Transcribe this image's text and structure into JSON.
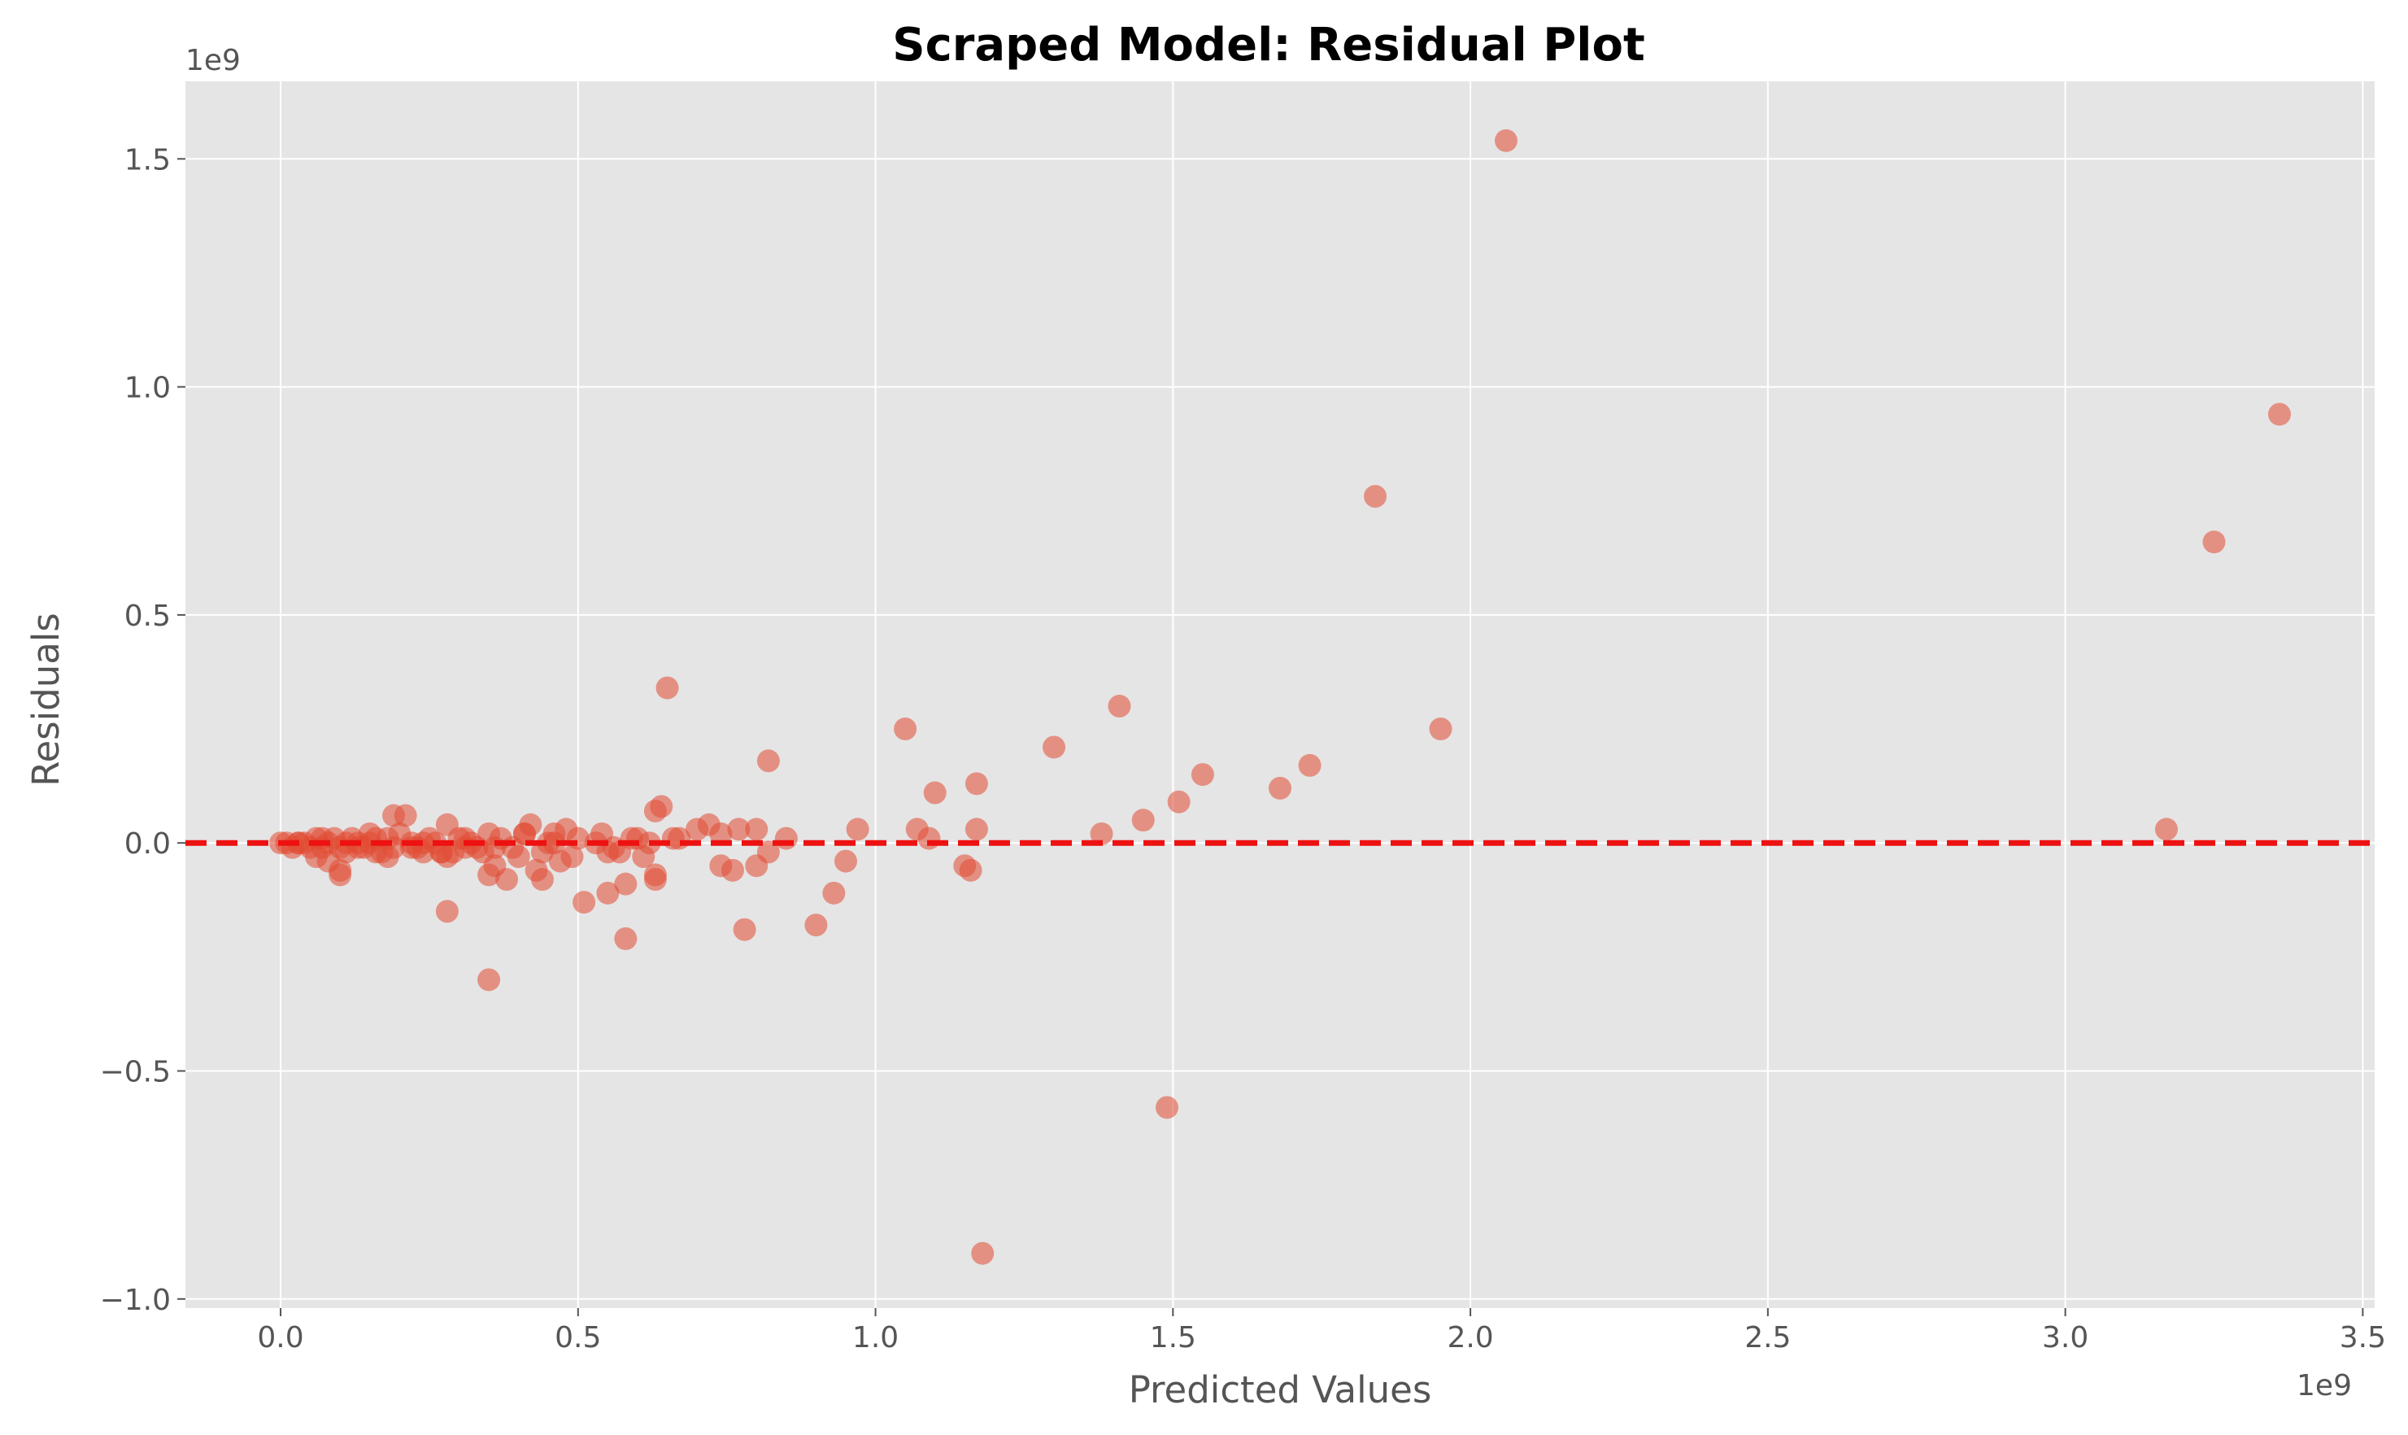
{
  "chart_data": {
    "type": "scatter",
    "title": "Scraped Model: Residual Plot",
    "xlabel": "Predicted Values",
    "ylabel": "Residuals",
    "x_offset_label": "1e9",
    "y_offset_label": "1e9",
    "xlim": [
      -0.16,
      3.52
    ],
    "ylim": [
      -1.02,
      1.67
    ],
    "x_ticks": [
      0.0,
      0.5,
      1.0,
      1.5,
      2.0,
      2.5,
      3.0,
      3.5
    ],
    "x_tick_labels": [
      "0.0",
      "0.5",
      "1.0",
      "1.5",
      "2.0",
      "2.5",
      "3.0",
      "3.5"
    ],
    "y_ticks": [
      -1.0,
      -0.5,
      0.0,
      0.5,
      1.0,
      1.5
    ],
    "y_tick_labels": [
      "−1.0",
      "−0.5",
      "0.0",
      "0.5",
      "1.0",
      "1.5"
    ],
    "grid": true,
    "reference_line": {
      "y": 0.0,
      "style": "dashed",
      "color": "#ee1111"
    },
    "colors": {
      "points": "#E24A33",
      "background": "#E5E5E5",
      "grid": "#ffffff"
    },
    "points": {
      "x": [
        2.06,
        3.36,
        1.84,
        3.25,
        0.65,
        1.41,
        1.95,
        1.05,
        1.3,
        0.82,
        1.73,
        1.55,
        1.17,
        1.1,
        1.68,
        1.51,
        1.45,
        1.38,
        3.17,
        0.97,
        1.07,
        0.85,
        0.72,
        0.77,
        0.63,
        0.64,
        0.42,
        0.48,
        0.54,
        0.21,
        0.19,
        0.28,
        0.35,
        0.46,
        0.6,
        0.66,
        0.7,
        0.74,
        0.8,
        1.09,
        1.17,
        0.95,
        0.82,
        0.61,
        0.74,
        0.76,
        0.8,
        0.63,
        0.55,
        0.44,
        0.4,
        0.36,
        0.33,
        1.15,
        1.16,
        0.93,
        0.51,
        0.58,
        0.57,
        0.55,
        0.63,
        0.44,
        0.38,
        0.35,
        0.27,
        0.28,
        0.1,
        0.1,
        0.06,
        0.08,
        0.13,
        0.16,
        0.22,
        0.24,
        0.29,
        0.31,
        0.34,
        0.43,
        0.47,
        0.49,
        0.9,
        0.78,
        0.58,
        0.35,
        0.28,
        1.49,
        1.18,
        0.0,
        0.01,
        0.02,
        0.03,
        0.04,
        0.05,
        0.06,
        0.07,
        0.08,
        0.09,
        0.1,
        0.11,
        0.12,
        0.13,
        0.14,
        0.15,
        0.16,
        0.17,
        0.18,
        0.19,
        0.2,
        0.22,
        0.23,
        0.25,
        0.26,
        0.27,
        0.3,
        0.32,
        0.37,
        0.39,
        0.41,
        0.45,
        0.5,
        0.53,
        0.56,
        0.59,
        0.62,
        0.67,
        0.03,
        0.07,
        0.11,
        0.15,
        0.18,
        0.24,
        0.31,
        0.36,
        0.41,
        0.46
      ],
      "y": [
        1.54,
        0.94,
        0.76,
        0.66,
        0.34,
        0.3,
        0.25,
        0.25,
        0.21,
        0.18,
        0.17,
        0.15,
        0.13,
        0.11,
        0.12,
        0.09,
        0.05,
        0.02,
        0.03,
        0.03,
        0.03,
        0.01,
        0.04,
        0.03,
        0.07,
        0.08,
        0.04,
        0.03,
        0.02,
        0.06,
        0.06,
        0.04,
        0.02,
        0.02,
        0.01,
        0.01,
        0.03,
        0.02,
        0.03,
        0.01,
        0.03,
        -0.04,
        -0.02,
        -0.03,
        -0.05,
        -0.06,
        -0.05,
        -0.07,
        -0.02,
        -0.02,
        -0.03,
        -0.05,
        -0.01,
        -0.05,
        -0.06,
        -0.11,
        -0.13,
        -0.09,
        -0.02,
        -0.11,
        -0.08,
        -0.08,
        -0.08,
        -0.07,
        -0.02,
        -0.03,
        -0.06,
        -0.07,
        -0.03,
        -0.04,
        -0.01,
        -0.02,
        -0.01,
        -0.02,
        -0.02,
        -0.01,
        -0.02,
        -0.06,
        -0.04,
        -0.03,
        -0.18,
        -0.19,
        -0.21,
        -0.3,
        -0.15,
        -0.58,
        -0.9,
        0.0,
        0.0,
        -0.01,
        0.0,
        0.0,
        -0.01,
        0.01,
        -0.01,
        0.0,
        0.01,
        -0.01,
        0.0,
        0.01,
        0.0,
        -0.01,
        0.0,
        0.01,
        -0.02,
        0.01,
        -0.01,
        0.02,
        0.0,
        -0.01,
        0.01,
        0.0,
        -0.02,
        0.01,
        0.0,
        0.01,
        -0.01,
        0.02,
        0.0,
        0.01,
        0.0,
        -0.01,
        0.01,
        0.0,
        0.01,
        0.0,
        0.01,
        -0.02,
        0.02,
        -0.03,
        0.0,
        0.01,
        -0.01,
        0.02,
        0.0
      ]
    }
  }
}
